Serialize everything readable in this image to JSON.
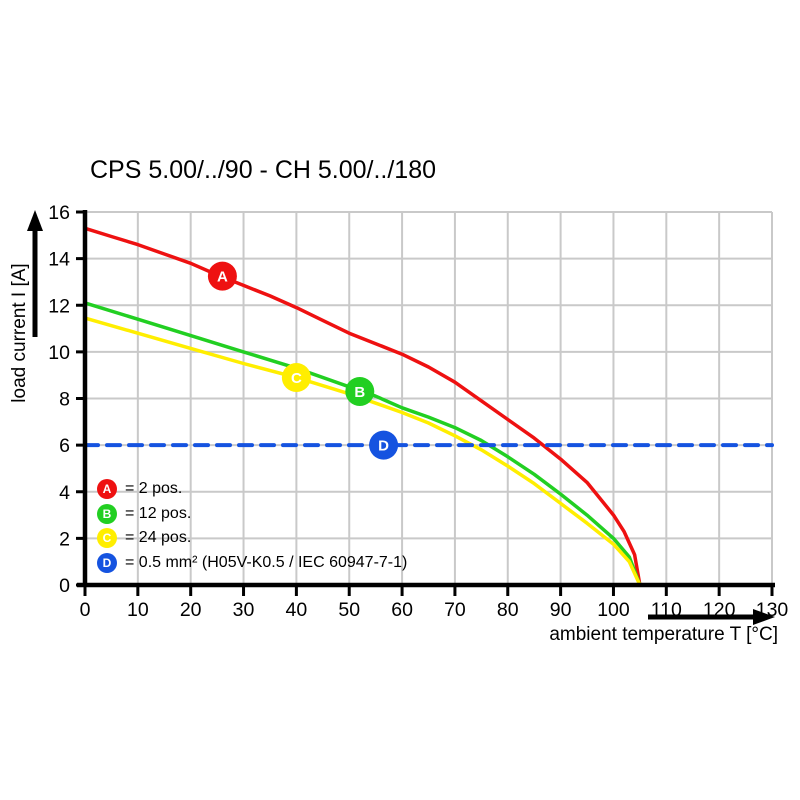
{
  "title": "CPS 5.00/../90 - CH 5.00/../180",
  "x_axis": {
    "label": "ambient temperature T [°C]",
    "min": 0,
    "max": 130,
    "ticks": [
      0,
      10,
      20,
      30,
      40,
      50,
      60,
      70,
      80,
      90,
      100,
      110,
      120,
      130
    ]
  },
  "y_axis": {
    "label": "load current I [A]",
    "min": 0,
    "max": 16,
    "ticks": [
      0,
      2,
      4,
      6,
      8,
      10,
      12,
      14,
      16
    ]
  },
  "colors": {
    "red": "#ee1111",
    "green": "#22cf22",
    "yellow": "#ffee00",
    "blue": "#1553e0",
    "grid": "#c9c9c9",
    "axis": "#000000"
  },
  "chart_data": {
    "type": "line",
    "title": "CPS 5.00/../90 - CH 5.00/../180",
    "xlabel": "ambient temperature T [°C]",
    "ylabel": "load current I [A]",
    "xlim": [
      0,
      130
    ],
    "ylim": [
      0,
      16
    ],
    "grid": true,
    "legend_position": "inside bottom-left",
    "series": [
      {
        "key": "A",
        "legend_text": "= 2 pos.",
        "color": "#ee1111",
        "style": "solid",
        "marker": {
          "x": 26,
          "y": 13.25
        },
        "points": [
          [
            0,
            15.3
          ],
          [
            5,
            14.95
          ],
          [
            10,
            14.6
          ],
          [
            15,
            14.2
          ],
          [
            20,
            13.8
          ],
          [
            25,
            13.3
          ],
          [
            30,
            12.85
          ],
          [
            35,
            12.4
          ],
          [
            40,
            11.9
          ],
          [
            45,
            11.35
          ],
          [
            50,
            10.8
          ],
          [
            55,
            10.35
          ],
          [
            60,
            9.9
          ],
          [
            65,
            9.35
          ],
          [
            70,
            8.7
          ],
          [
            75,
            7.9
          ],
          [
            80,
            7.1
          ],
          [
            85,
            6.3
          ],
          [
            90,
            5.4
          ],
          [
            95,
            4.4
          ],
          [
            100,
            3.0
          ],
          [
            102,
            2.3
          ],
          [
            104,
            1.3
          ],
          [
            105,
            0
          ]
        ]
      },
      {
        "key": "B",
        "legend_text": "= 12 pos.",
        "color": "#22cf22",
        "style": "solid",
        "marker": {
          "x": 52,
          "y": 8.3
        },
        "points": [
          [
            0,
            12.1
          ],
          [
            10,
            11.4
          ],
          [
            20,
            10.7
          ],
          [
            30,
            10.0
          ],
          [
            40,
            9.3
          ],
          [
            50,
            8.5
          ],
          [
            55,
            8.1
          ],
          [
            60,
            7.6
          ],
          [
            65,
            7.2
          ],
          [
            70,
            6.75
          ],
          [
            75,
            6.2
          ],
          [
            80,
            5.5
          ],
          [
            85,
            4.75
          ],
          [
            90,
            3.9
          ],
          [
            95,
            3.0
          ],
          [
            100,
            2.0
          ],
          [
            103,
            1.2
          ],
          [
            105,
            0
          ]
        ]
      },
      {
        "key": "C",
        "legend_text": "= 24 pos.",
        "color": "#ffee00",
        "style": "solid",
        "marker": {
          "x": 40,
          "y": 8.9
        },
        "points": [
          [
            0,
            11.45
          ],
          [
            10,
            10.8
          ],
          [
            20,
            10.15
          ],
          [
            30,
            9.5
          ],
          [
            40,
            8.9
          ],
          [
            50,
            8.2
          ],
          [
            60,
            7.4
          ],
          [
            65,
            6.95
          ],
          [
            70,
            6.4
          ],
          [
            75,
            5.8
          ],
          [
            80,
            5.1
          ],
          [
            85,
            4.35
          ],
          [
            90,
            3.5
          ],
          [
            95,
            2.65
          ],
          [
            100,
            1.75
          ],
          [
            103,
            1.0
          ],
          [
            105,
            0
          ]
        ]
      },
      {
        "key": "D",
        "legend_text": "= 0.5 mm² (H05V-K0.5 / IEC 60947-7-1)",
        "color": "#1553e0",
        "style": "dashed",
        "marker": {
          "x": 56.5,
          "y": 6
        },
        "points": [
          [
            0,
            6
          ],
          [
            130,
            6
          ]
        ]
      }
    ]
  }
}
